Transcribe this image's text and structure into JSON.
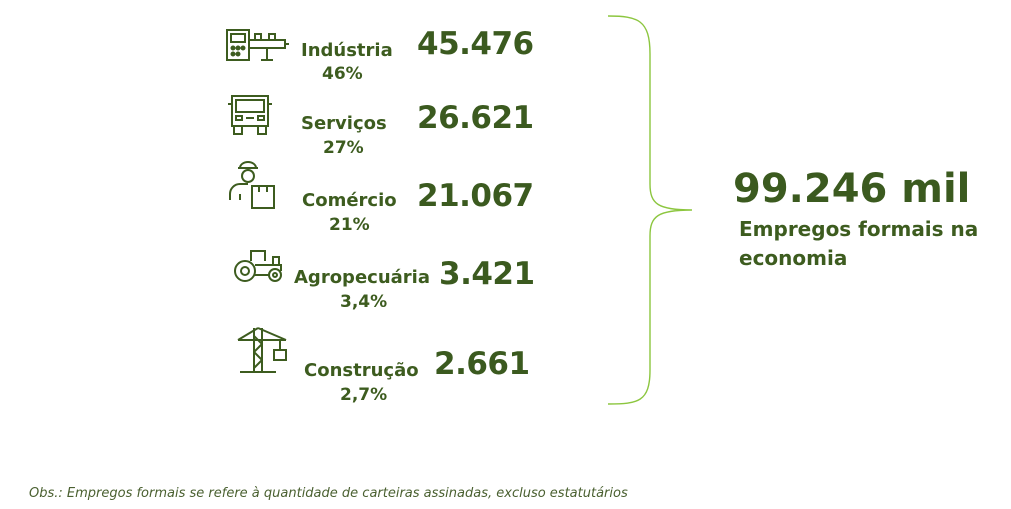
{
  "sectors": [
    {
      "name": "Indústria",
      "pct": "46%",
      "value": "45.476",
      "icon": "industrial-machine-icon"
    },
    {
      "name": "Serviços",
      "pct": "27%",
      "value": "26.621",
      "icon": "truck-icon"
    },
    {
      "name": "Comércio",
      "pct": "21%",
      "value": "21.067",
      "icon": "delivery-person-icon"
    },
    {
      "name": "Agropecuária",
      "pct": "3,4%",
      "value": "3.421",
      "icon": "tractor-icon"
    },
    {
      "name": "Construção",
      "pct": "2,7%",
      "value": "2.661",
      "icon": "crane-icon"
    }
  ],
  "total": {
    "value": "99.246 mil",
    "description": "Empregos formais na economia"
  },
  "note": "Obs.: Empregos formais se refere à quantidade de carteiras assinadas, excluso estatutários",
  "colors": {
    "primary_green": "#3b5a1f",
    "brace_green": "#8cc63f"
  }
}
